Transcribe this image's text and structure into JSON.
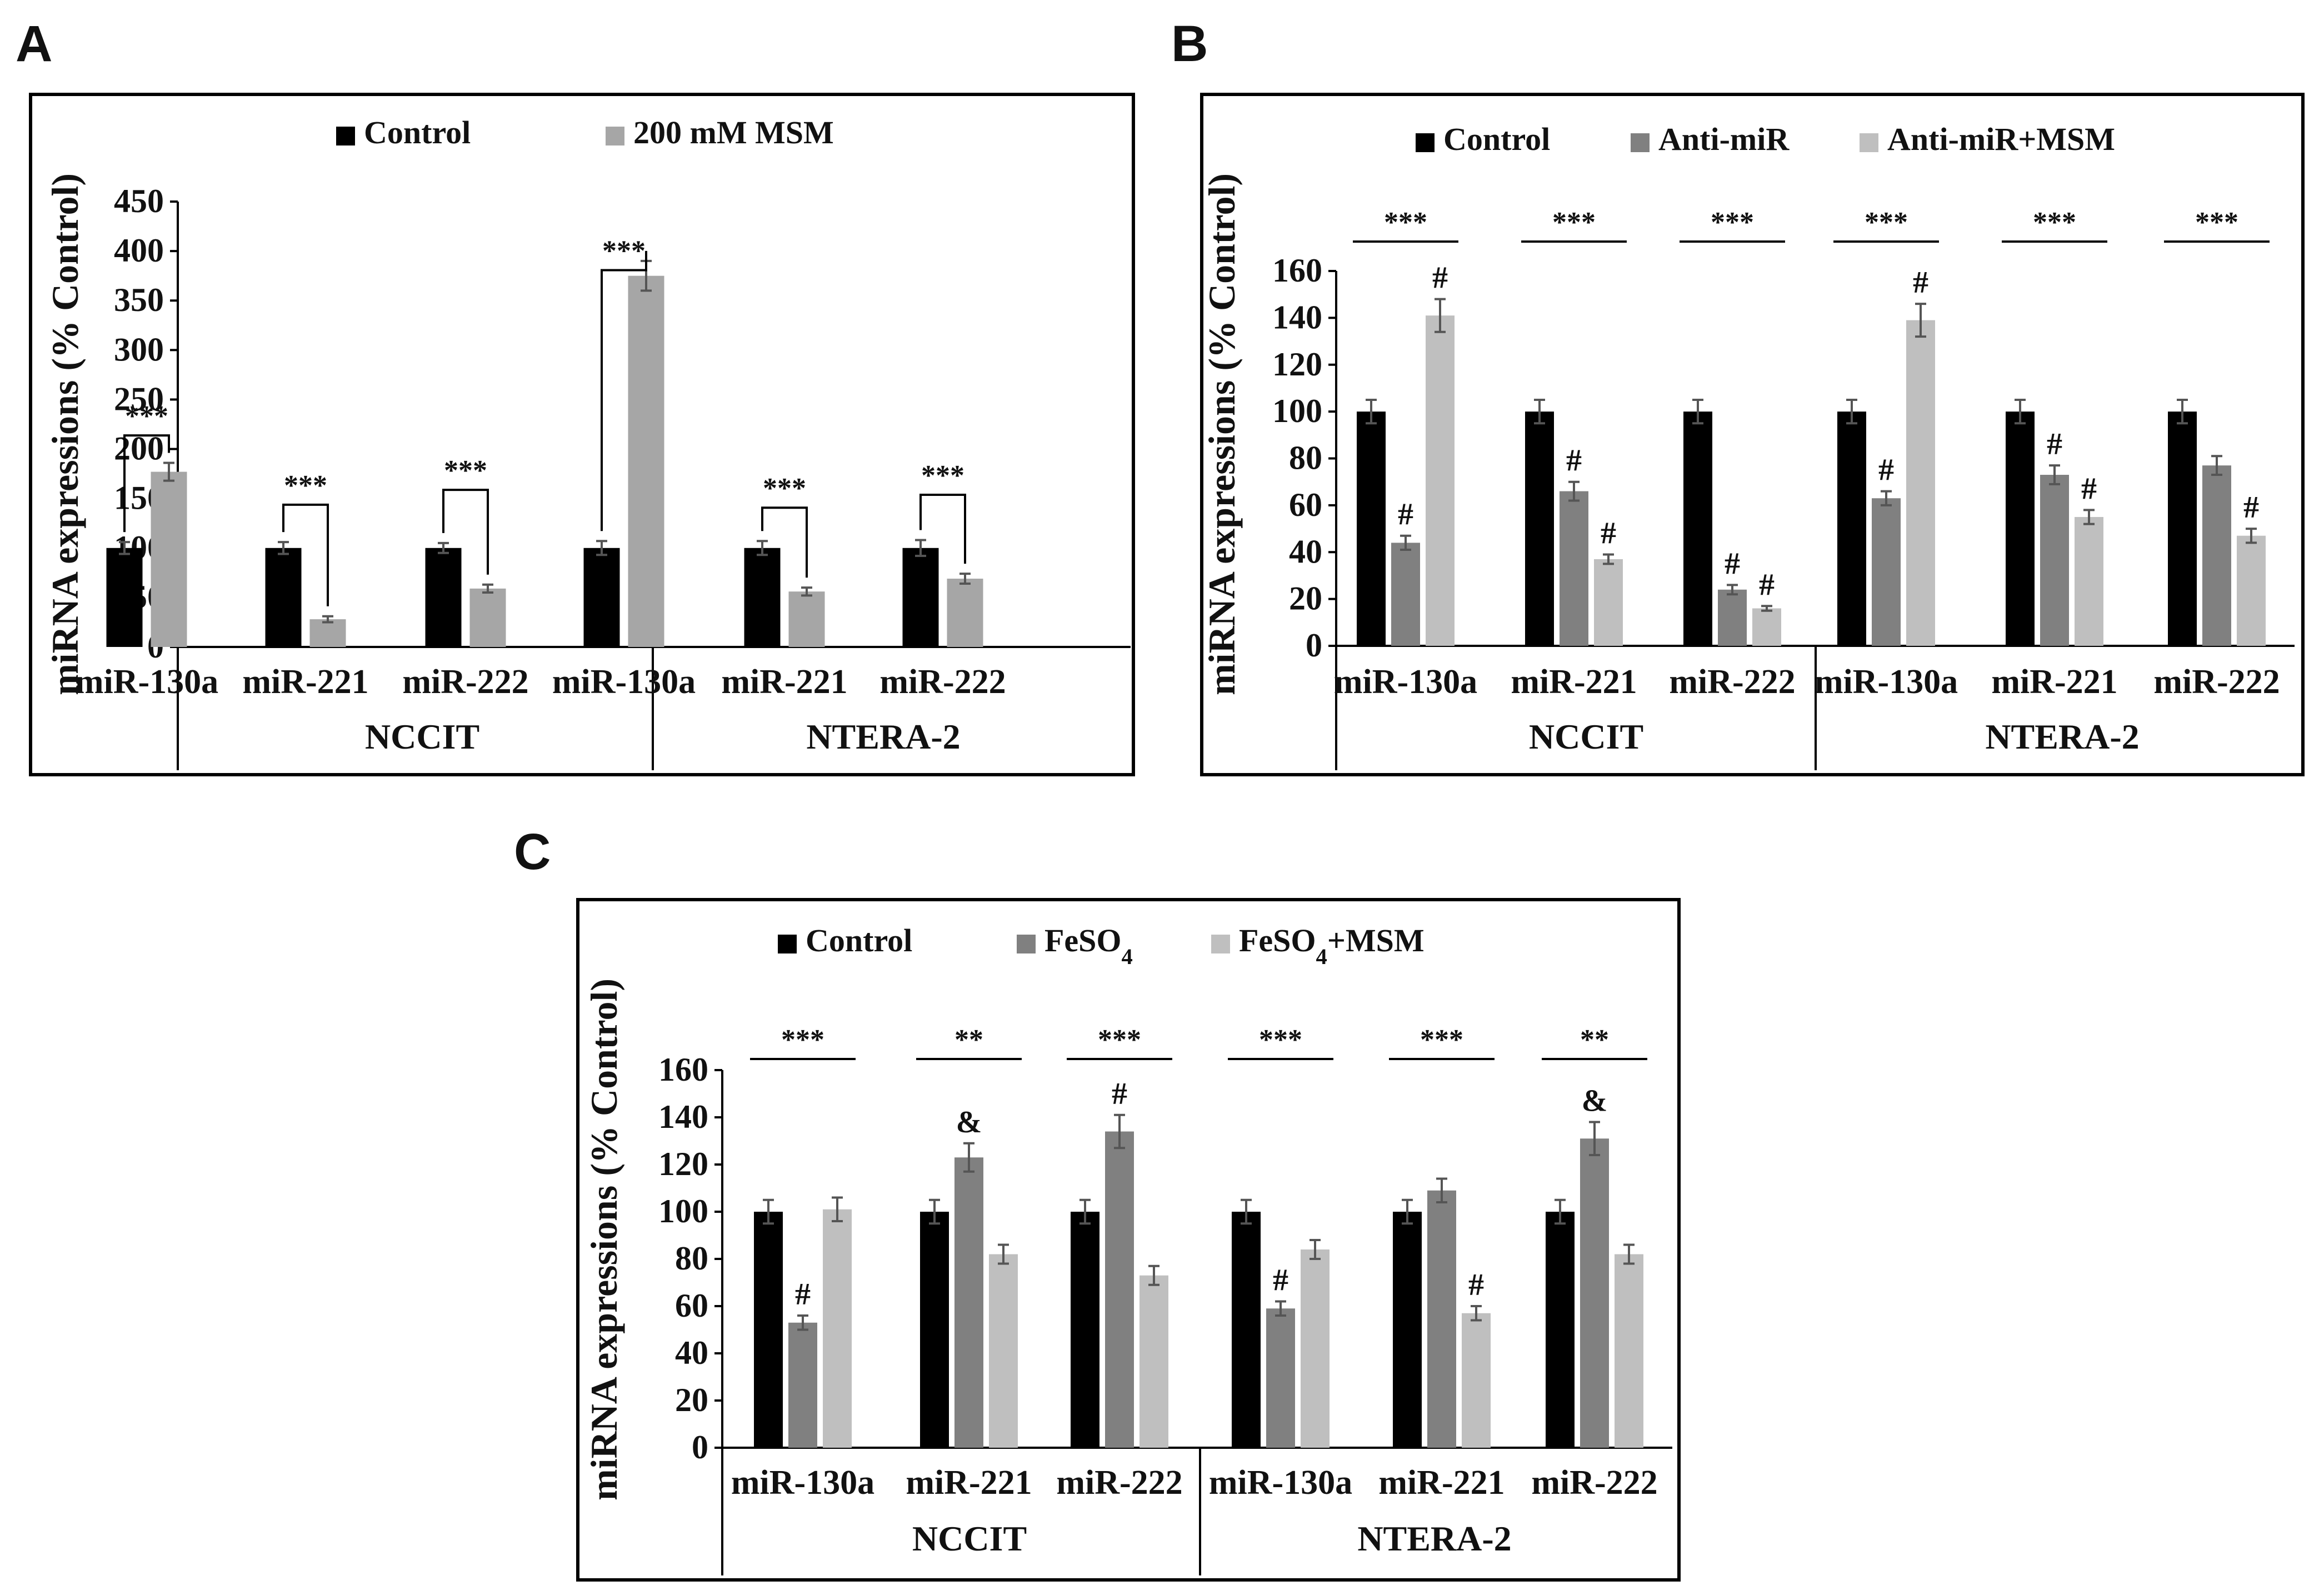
{
  "colors": {
    "control": "#000000",
    "anti_mir": "#808080",
    "msm": "#bfbfbf",
    "frame": "#000000",
    "error": "#555555"
  },
  "chart_data": [
    {
      "panel": "A",
      "type": "bar",
      "ylabel": "miRNA expressions (% Control)",
      "ylim": [
        0,
        450
      ],
      "yticks": [
        0,
        50,
        100,
        150,
        200,
        250,
        300,
        350,
        400,
        450
      ],
      "legend": [
        "Control",
        "200 mM MSM"
      ],
      "legend_position": "top",
      "categories": [
        "miR-130a",
        "miR-221",
        "miR-222",
        "miR-130a",
        "miR-221",
        "miR-222"
      ],
      "groups": [
        {
          "label": "NCCIT",
          "span": [
            0,
            2
          ]
        },
        {
          "label": "NTERA-2",
          "span": [
            3,
            5
          ]
        }
      ],
      "series": [
        {
          "name": "Control",
          "color": "#000000",
          "values": [
            100,
            100,
            100,
            100,
            100,
            100
          ],
          "errors": [
            6,
            6,
            5,
            7,
            7,
            8
          ]
        },
        {
          "name": "200 mM MSM",
          "color": "#a6a6a6",
          "values": [
            177,
            28,
            59,
            375,
            56,
            69
          ],
          "errors": [
            9,
            3,
            4,
            15,
            4,
            5
          ]
        }
      ],
      "annotations": [
        {
          "category": 0,
          "text": "***",
          "style": "bracket",
          "level": 253
        },
        {
          "category": 1,
          "text": "***",
          "style": "bracket",
          "level": 183
        },
        {
          "category": 2,
          "text": "***",
          "style": "bracket",
          "level": 198
        },
        {
          "category": 3,
          "text": "***",
          "style": "bracket",
          "level": 420
        },
        {
          "category": 4,
          "text": "***",
          "style": "bracket",
          "level": 180
        },
        {
          "category": 5,
          "text": "***",
          "style": "bracket",
          "level": 193
        }
      ]
    },
    {
      "panel": "B",
      "type": "bar",
      "ylabel": "miRNA expressions (% Control)",
      "ylim": [
        0,
        160
      ],
      "yticks": [
        0,
        20,
        40,
        60,
        80,
        100,
        120,
        140,
        160
      ],
      "legend": [
        "Control",
        "Anti-miR",
        "Anti-miR+MSM"
      ],
      "legend_position": "top",
      "categories": [
        "miR-130a",
        "miR-221",
        "miR-222",
        "miR-130a",
        "miR-221",
        "miR-222"
      ],
      "groups": [
        {
          "label": "NCCIT",
          "span": [
            0,
            2
          ]
        },
        {
          "label": "NTERA-2",
          "span": [
            3,
            5
          ]
        }
      ],
      "series": [
        {
          "name": "Control",
          "color": "#000000",
          "values": [
            100,
            100,
            100,
            100,
            100,
            100
          ],
          "errors": [
            5,
            5,
            5,
            5,
            5,
            5
          ]
        },
        {
          "name": "Anti-miR",
          "color": "#808080",
          "values": [
            44,
            66,
            24,
            63,
            73,
            77
          ],
          "errors": [
            3,
            4,
            2,
            3,
            4,
            4
          ]
        },
        {
          "name": "Anti-miR+MSM",
          "color": "#bfbfbf",
          "values": [
            141,
            37,
            16,
            139,
            55,
            47
          ],
          "errors": [
            7,
            2,
            1,
            7,
            3,
            3
          ]
        }
      ],
      "markers": [
        {
          "category": 0,
          "series": 1,
          "text": "#"
        },
        {
          "category": 0,
          "series": 2,
          "text": "#"
        },
        {
          "category": 1,
          "series": 1,
          "text": "#"
        },
        {
          "category": 1,
          "series": 2,
          "text": "#"
        },
        {
          "category": 2,
          "series": 1,
          "text": "#"
        },
        {
          "category": 2,
          "series": 2,
          "text": "#"
        },
        {
          "category": 3,
          "series": 1,
          "text": "#"
        },
        {
          "category": 3,
          "series": 2,
          "text": "#"
        },
        {
          "category": 4,
          "series": 1,
          "text": "#"
        },
        {
          "category": 4,
          "series": 2,
          "text": "#"
        },
        {
          "category": 5,
          "series": 2,
          "text": "#"
        }
      ],
      "group_stars": [
        "***",
        "***",
        "***",
        "***",
        "***",
        "***"
      ]
    },
    {
      "panel": "C",
      "type": "bar",
      "ylabel": "miRNA expressions (% Control)",
      "ylim": [
        0,
        160
      ],
      "yticks": [
        0,
        20,
        40,
        60,
        80,
        100,
        120,
        140,
        160
      ],
      "legend": [
        "Control",
        "FeSO4",
        "FeSO4+MSM"
      ],
      "legend_position": "top",
      "categories": [
        "miR-130a",
        "miR-221",
        "miR-222",
        "miR-130a",
        "miR-221",
        "miR-222"
      ],
      "groups": [
        {
          "label": "NCCIT",
          "span": [
            0,
            2
          ]
        },
        {
          "label": "NTERA-2",
          "span": [
            3,
            5
          ]
        }
      ],
      "series": [
        {
          "name": "Control",
          "color": "#000000",
          "values": [
            100,
            100,
            100,
            100,
            100,
            100
          ],
          "errors": [
            5,
            5,
            5,
            5,
            5,
            5
          ]
        },
        {
          "name": "FeSO4",
          "color": "#808080",
          "values": [
            53,
            123,
            134,
            59,
            109,
            131
          ],
          "errors": [
            3,
            6,
            7,
            3,
            5,
            7
          ]
        },
        {
          "name": "FeSO4+MSM",
          "color": "#bfbfbf",
          "values": [
            101,
            82,
            73,
            84,
            57,
            82
          ],
          "errors": [
            5,
            4,
            4,
            4,
            3,
            4
          ]
        }
      ],
      "markers": [
        {
          "category": 0,
          "series": 1,
          "text": "#"
        },
        {
          "category": 1,
          "series": 1,
          "text": "&"
        },
        {
          "category": 2,
          "series": 1,
          "text": "#"
        },
        {
          "category": 3,
          "series": 1,
          "text": "#"
        },
        {
          "category": 4,
          "series": 2,
          "text": "#"
        },
        {
          "category": 5,
          "series": 1,
          "text": "&"
        }
      ],
      "group_stars": [
        "***",
        "**",
        "***",
        "***",
        "***",
        "**"
      ]
    }
  ]
}
